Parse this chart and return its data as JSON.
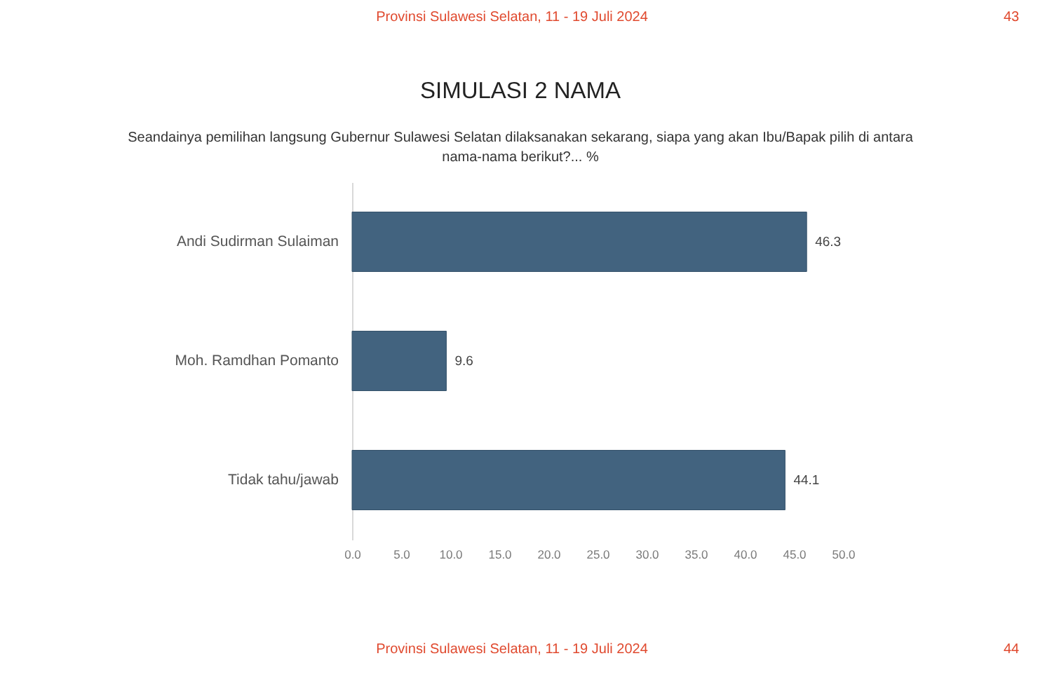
{
  "chart_data": {
    "type": "bar",
    "orientation": "horizontal",
    "title": "SIMULASI 2 NAMA",
    "subtitle": "Seandainya pemilihan langsung Gubernur Sulawesi Selatan dilaksanakan sekarang, siapa yang akan Ibu/Bapak pilih di antara nama-nama berikut?... %",
    "categories": [
      "Andi Sudirman Sulaiman",
      "Moh. Ramdhan Pomanto",
      "Tidak tahu/jawab"
    ],
    "values": [
      46.3,
      9.6,
      44.1
    ],
    "color": "#42637f",
    "data_labels": true,
    "xlim": [
      0,
      50
    ],
    "xticks": [
      {
        "value": 0,
        "label": "0.0"
      },
      {
        "value": 5,
        "label": "5.0"
      },
      {
        "value": 10,
        "label": "10.0"
      },
      {
        "value": 15,
        "label": "15.0"
      },
      {
        "value": 20,
        "label": "20.0"
      },
      {
        "value": 25,
        "label": "25.0"
      },
      {
        "value": 30,
        "label": "30.0"
      },
      {
        "value": 35,
        "label": "35.0"
      },
      {
        "value": 40,
        "label": "40.0"
      },
      {
        "value": 45,
        "label": "45.0"
      },
      {
        "value": 50,
        "label": "50.0"
      }
    ],
    "grid": false,
    "annotations": [
      "Provinsi Sulawesi Selatan, 11 - 19 Juli 2024",
      "43",
      "Provinsi Sulawesi Selatan, 11 - 19 Juli 2024",
      "44"
    ]
  }
}
